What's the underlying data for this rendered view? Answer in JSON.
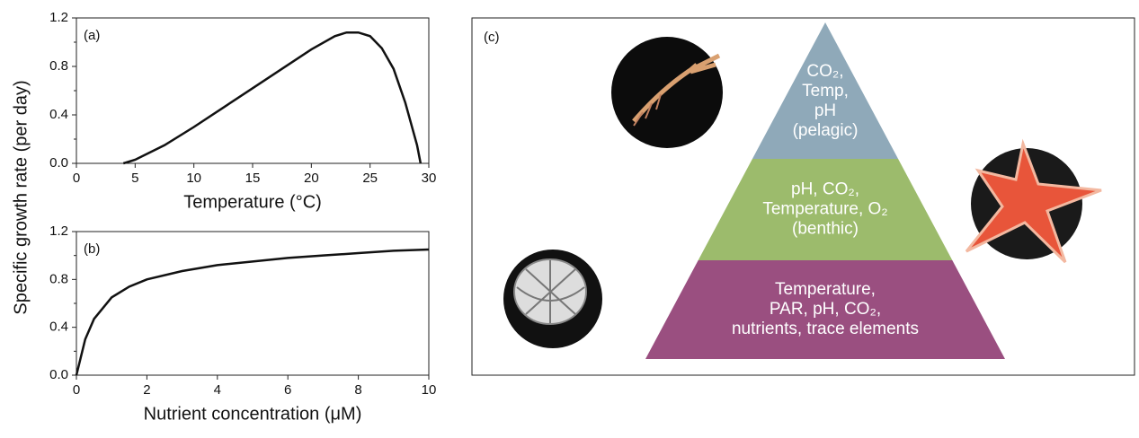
{
  "chart_data": [
    {
      "type": "line",
      "panel_label": "(a)",
      "xlabel": "Temperature (°C)",
      "ylabel": "Specific growth rate (per day)",
      "x": [
        4,
        5,
        7.5,
        10,
        12.5,
        15,
        17.5,
        20,
        22,
        23,
        24,
        25,
        26,
        27,
        28,
        29,
        29.3
      ],
      "values": [
        0,
        0.03,
        0.15,
        0.3,
        0.46,
        0.62,
        0.78,
        0.94,
        1.05,
        1.08,
        1.08,
        1.05,
        0.95,
        0.78,
        0.5,
        0.15,
        0
      ],
      "color": "#111111",
      "xlim": [
        0,
        30
      ],
      "xticks": [
        0,
        5,
        10,
        15,
        20,
        25,
        30
      ],
      "ylim": [
        0,
        1.2
      ],
      "yticks": [
        {
          "value": 0,
          "label": "0.0"
        },
        0.4,
        0.8,
        1.2
      ],
      "yminor": [
        0.2,
        0.6,
        1.0
      ]
    },
    {
      "type": "line",
      "panel_label": "(b)",
      "xlabel": "Nutrient concentration (μM)",
      "x": [
        0,
        0.25,
        0.5,
        1,
        1.5,
        2,
        3,
        4,
        5,
        6,
        7,
        8,
        9,
        10
      ],
      "values": [
        0,
        0.3,
        0.47,
        0.65,
        0.74,
        0.8,
        0.87,
        0.92,
        0.95,
        0.98,
        1.0,
        1.02,
        1.04,
        1.05
      ],
      "color": "#111111",
      "xlim": [
        0,
        10
      ],
      "xticks": [
        0,
        2,
        4,
        6,
        8,
        10
      ],
      "ylim": [
        0,
        1.2
      ],
      "yticks": [
        {
          "value": 0,
          "label": "0.0"
        },
        0.4,
        0.8,
        1.2
      ],
      "yminor": [
        0.2,
        0.6,
        1.0
      ]
    }
  ],
  "diagram": {
    "panel_label": "(c)",
    "levels": [
      {
        "color": "#8fa9b9",
        "lines": [
          "CO₂,",
          "Temp,",
          "pH",
          "(pelagic)"
        ]
      },
      {
        "color": "#9cbb6c",
        "lines": [
          "pH, CO₂,",
          "Temperature, O₂",
          "(benthic)"
        ]
      },
      {
        "color": "#9a4f80",
        "lines": [
          "Temperature,",
          "PAR, pH, CO₂,",
          "nutrients, trace elements"
        ]
      }
    ]
  }
}
